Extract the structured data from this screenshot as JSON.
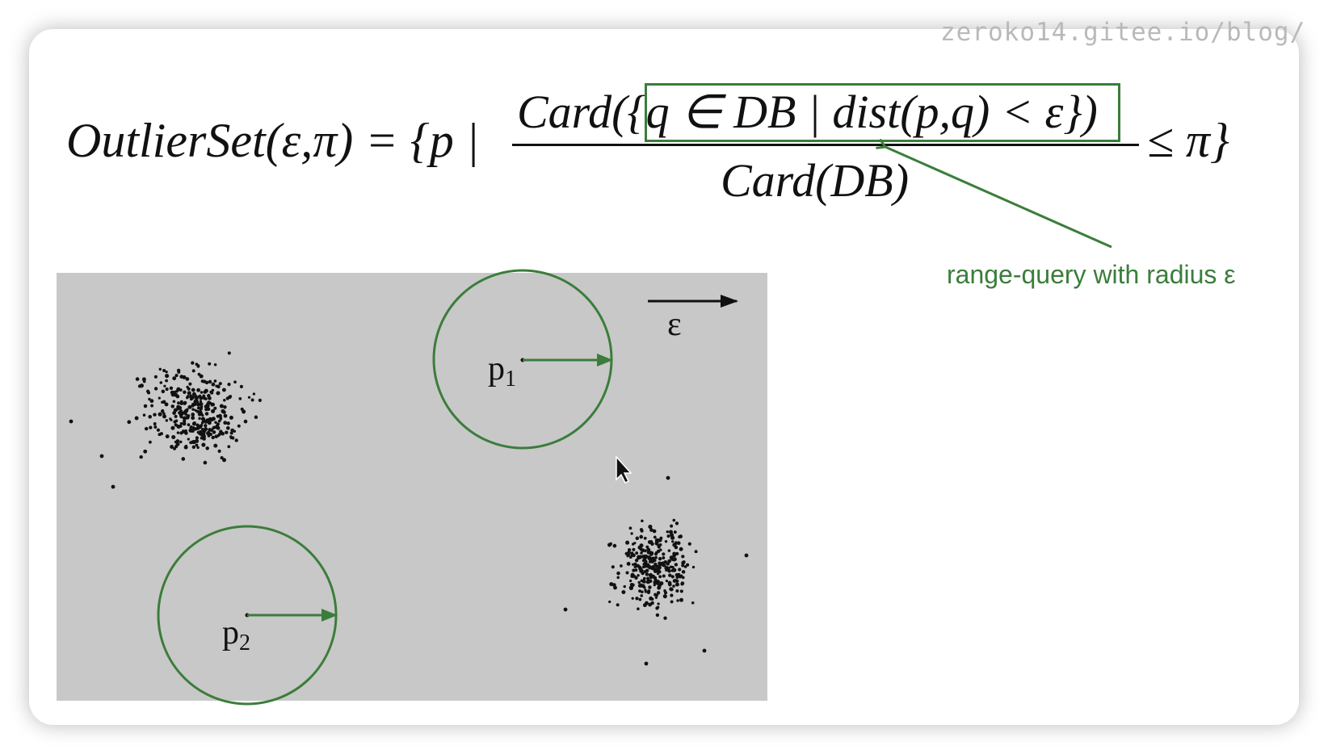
{
  "watermark": "zeroko14.gitee.io/blog/",
  "formula": {
    "lhs": "OutlierSet(ε,π) = {p |",
    "numerator": "Card({q ∈ DB | dist(p,q) < ε})",
    "denominator": "Card(DB)",
    "rhs": "≤ π}"
  },
  "annotation": "range-query with radius ε",
  "diagram": {
    "epsilon_label": "ε",
    "points": [
      {
        "letter": "p",
        "subscript": "1"
      },
      {
        "letter": "p",
        "subscript": "2"
      }
    ]
  },
  "colors": {
    "accent": "#3b7d3b",
    "plot_bg": "#c8c8c8",
    "dots": "#111111"
  },
  "icons": [
    "mouse-cursor-icon"
  ]
}
